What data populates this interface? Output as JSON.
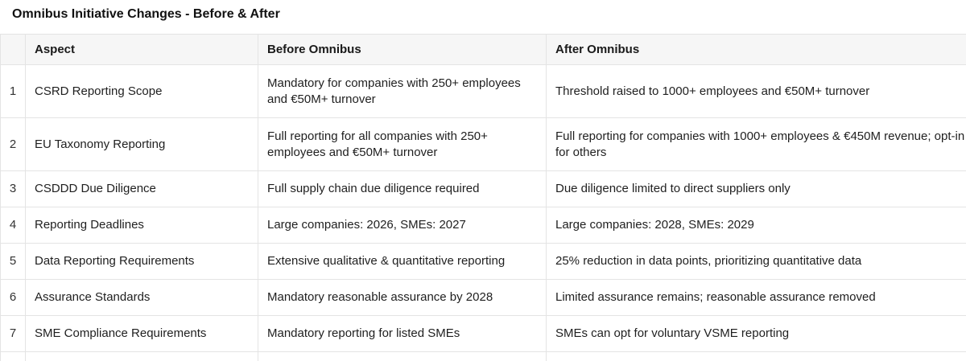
{
  "title": "Omnibus Initiative Changes - Before & After",
  "table": {
    "columns": [
      "",
      "Aspect",
      "Before Omnibus",
      "After Omnibus"
    ],
    "rows": [
      {
        "index": "1",
        "aspect": "CSRD Reporting Scope",
        "before": "Mandatory for companies with 250+ employees and €50M+ turnover",
        "after": "Threshold raised to 1000+ employees and €50M+ turnover"
      },
      {
        "index": "2",
        "aspect": "EU Taxonomy Reporting",
        "before": "Full reporting for all companies with 250+ employees and €50M+ turnover",
        "after": "Full reporting for companies with 1000+ employees & €450M revenue; opt-in for others"
      },
      {
        "index": "3",
        "aspect": "CSDDD Due Diligence",
        "before": "Full supply chain due diligence required",
        "after": "Due diligence limited to direct suppliers only"
      },
      {
        "index": "4",
        "aspect": "Reporting Deadlines",
        "before": "Large companies: 2026, SMEs: 2027",
        "after": "Large companies: 2028, SMEs: 2029"
      },
      {
        "index": "5",
        "aspect": "Data Reporting Requirements",
        "before": "Extensive qualitative & quantitative reporting",
        "after": "25% reduction in data points, prioritizing quantitative data"
      },
      {
        "index": "6",
        "aspect": "Assurance Standards",
        "before": "Mandatory reasonable assurance by 2028",
        "after": "Limited assurance remains; reasonable assurance removed"
      },
      {
        "index": "7",
        "aspect": "SME Compliance Requirements",
        "before": "Mandatory reporting for listed SMEs",
        "after": "SMEs can opt for voluntary VSME reporting"
      }
    ]
  }
}
